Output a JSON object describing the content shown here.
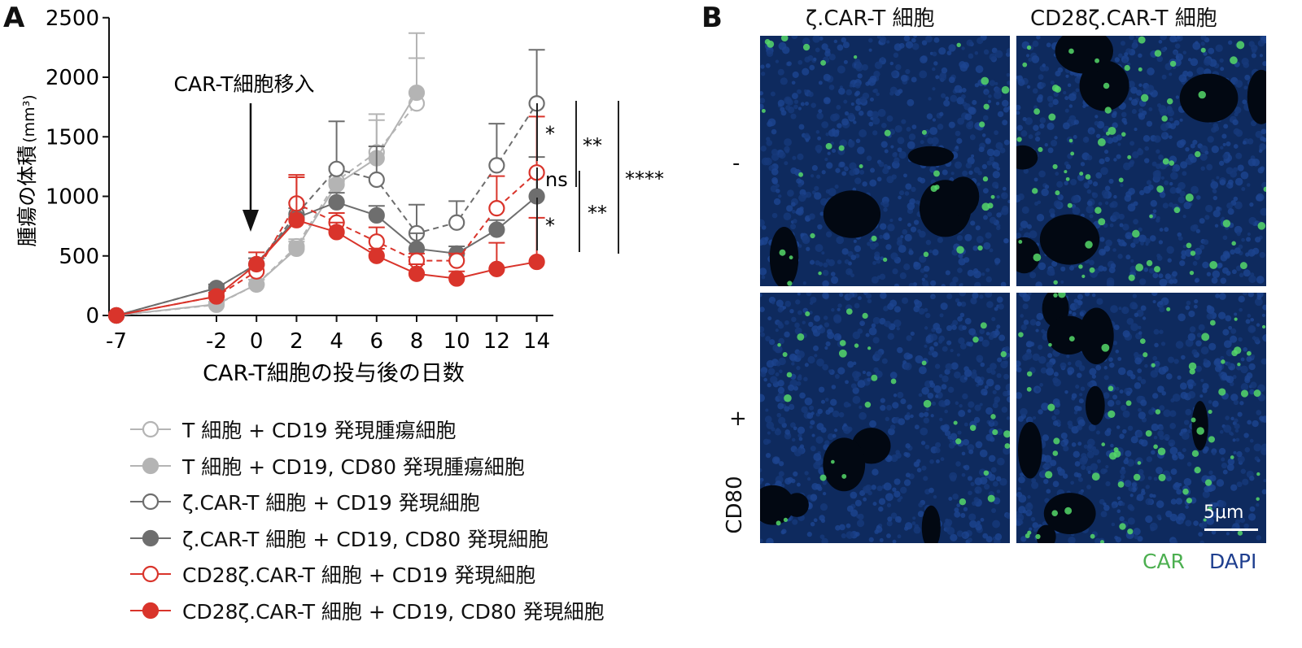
{
  "panel_a": {
    "letter": "A"
  },
  "panel_b": {
    "letter": "B",
    "col_titles": [
      "ζ.CAR-T 細胞",
      "CD28ζ.CAR-T 細胞"
    ],
    "row_labels": [
      "-",
      "+"
    ],
    "row_group_label": "CD80",
    "scale_bar": "5μm",
    "stain_car": "CAR",
    "stain_dapi": "DAPI",
    "colors": {
      "car": "#4caf50",
      "dapi": "#1f3f8f"
    }
  },
  "chart_data": {
    "type": "line",
    "xlabel": "CAR-T細胞の投与後の日数",
    "ylabel": "腫瘍の体積",
    "ylabel_unit": "(mm³)",
    "x": [
      -7,
      -2,
      0,
      2,
      4,
      6,
      8,
      10,
      12,
      14
    ],
    "x_ticks": [
      -7,
      -2,
      0,
      2,
      4,
      6,
      8,
      10,
      12,
      14
    ],
    "y_ticks": [
      0,
      500,
      1000,
      1500,
      2000,
      2500
    ],
    "ylim": [
      0,
      2500
    ],
    "annotation": {
      "text": "CAR-T細胞移入",
      "x": 0
    },
    "series": [
      {
        "name": "T 細胞 + CD19 発現腫瘍細胞",
        "color": "#b4b4b4",
        "filled": false,
        "dashed": true,
        "values": [
          0,
          90,
          260,
          580,
          1130,
          1370,
          1780,
          null,
          null,
          null
        ],
        "errors": [
          0,
          20,
          40,
          60,
          120,
          320,
          380,
          null,
          null,
          null
        ]
      },
      {
        "name": "T 細胞 + CD19, CD80 発現腫瘍細胞",
        "color": "#b4b4b4",
        "filled": true,
        "dashed": false,
        "values": [
          0,
          95,
          260,
          560,
          1100,
          1320,
          1870,
          null,
          null,
          null
        ],
        "errors": [
          0,
          20,
          40,
          60,
          120,
          320,
          500,
          null,
          null,
          null
        ]
      },
      {
        "name": "ζ.CAR-T 細胞 + CD19 発現細胞",
        "color": "#6e6e6e",
        "filled": false,
        "dashed": true,
        "values": [
          0,
          230,
          430,
          850,
          1230,
          1140,
          690,
          780,
          1260,
          1780
        ],
        "errors": [
          0,
          30,
          50,
          100,
          400,
          280,
          240,
          180,
          350,
          450
        ]
      },
      {
        "name": "ζ.CAR-T 細胞 + CD19, CD80 発現細胞",
        "color": "#6e6e6e",
        "filled": true,
        "dashed": false,
        "values": [
          0,
          230,
          430,
          820,
          950,
          840,
          560,
          520,
          720,
          1000
        ],
        "errors": [
          0,
          30,
          50,
          80,
          80,
          80,
          130,
          60,
          80,
          330
        ]
      },
      {
        "name": "CD28ζ.CAR-T 細胞 + CD19 発現細胞",
        "color": "#d9342b",
        "filled": false,
        "dashed": true,
        "values": [
          0,
          160,
          370,
          940,
          780,
          620,
          460,
          460,
          900,
          1200
        ],
        "errors": [
          0,
          30,
          50,
          220,
          80,
          120,
          60,
          60,
          270,
          470
        ]
      },
      {
        "name": "CD28ζ.CAR-T 細胞 + CD19, CD80 発現細胞",
        "color": "#d9342b",
        "filled": true,
        "dashed": false,
        "values": [
          0,
          160,
          430,
          800,
          700,
          500,
          350,
          310,
          390,
          450
        ],
        "errors": [
          0,
          30,
          100,
          380,
          80,
          60,
          80,
          60,
          220,
          370
        ]
      }
    ],
    "significance": [
      {
        "label": "*",
        "from": 1780,
        "to": 1200
      },
      {
        "label": "ns",
        "from": 1200,
        "to": 1000
      },
      {
        "label": "*",
        "from": 1000,
        "to": 450
      },
      {
        "label": "**",
        "from": 1780,
        "to": 1000
      },
      {
        "label": "**",
        "from": 1200,
        "to": 450
      },
      {
        "label": "****",
        "from": 1780,
        "to": 450
      }
    ]
  }
}
